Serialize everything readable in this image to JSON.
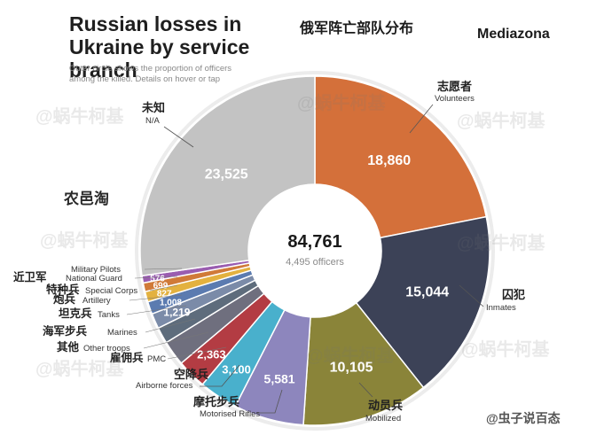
{
  "header": {
    "title": "Russian losses in Ukraine by service branch",
    "title_cn": "俄军阵亡部队分布",
    "brand": "Mediazona",
    "subtitle": "Outer circle shows the proportion of officers among the killed. Details on hover or tap"
  },
  "overlay": {
    "logo_text": "农邑淘",
    "watermark": "@蜗牛柯基",
    "footer_watermark": "@虫子说百态"
  },
  "chart_data": {
    "type": "donut",
    "center_value": "84,761",
    "center_label": "4,495 officers",
    "slices": [
      {
        "label_cn": "志愿者",
        "label": "Volunteers",
        "value": 18860,
        "display": "18,860",
        "color": "#d4703a"
      },
      {
        "label_cn": "囚犯",
        "label": "Inmates",
        "value": 15044,
        "display": "15,044",
        "color": "#3c4257"
      },
      {
        "label_cn": "动员兵",
        "label": "Mobilized",
        "value": 10105,
        "display": "10,105",
        "color": "#8a8439"
      },
      {
        "label_cn": "摩托步兵",
        "label": "Motorised Rifles",
        "value": 5581,
        "display": "5,581",
        "color": "#8d86bd"
      },
      {
        "label_cn": "空降兵",
        "label": "Airborne forces",
        "value": 3100,
        "display": "3,100",
        "color": "#49b0cc"
      },
      {
        "label_cn": "雇佣兵",
        "label": "PMC",
        "value": 2363,
        "display": "2,363",
        "color": "#b33c43"
      },
      {
        "label_cn": "其他",
        "label": "Other troops",
        "value": 2000,
        "display": "",
        "color": "#6f6f7e"
      },
      {
        "label_cn": "海军步兵",
        "label": "Marines",
        "value": 1300,
        "display": "",
        "color": "#5e6c7c"
      },
      {
        "label_cn": "坦克兵",
        "label": "Tanks",
        "value": 1219,
        "display": "1,219",
        "color": "#7b8ba8"
      },
      {
        "label_cn": "炮兵",
        "label": "Artillery",
        "value": 1008,
        "display": "1,008",
        "color": "#5b7bb0"
      },
      {
        "label_cn": "特种兵",
        "label": "Special Corps",
        "value": 827,
        "display": "827",
        "color": "#e3b13f"
      },
      {
        "label_cn": "近卫军",
        "label": "National Guard",
        "value": 699,
        "display": "699",
        "color": "#d07a38"
      },
      {
        "label_cn": "",
        "label": "Military Pilots",
        "value": 576,
        "display": "576",
        "color": "#9a5db0"
      },
      {
        "label_cn": "未知",
        "label": "N/A",
        "value": 23525,
        "display": "23,525",
        "color": "#c3c3c3"
      }
    ]
  }
}
